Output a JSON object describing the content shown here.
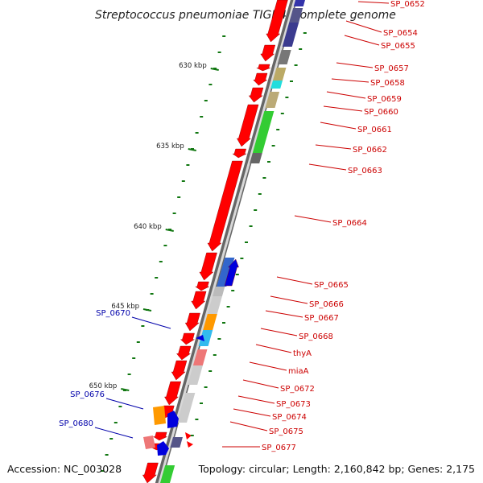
{
  "title": "Streptococcus pneumoniae TIGR4, complete genome",
  "accession_text": "Accession: NC_003028",
  "topology_text": "Topology: circular; Length: 2,160,842 bp; Genes: 2,175",
  "colors": {
    "forward_gene": "#ff0000",
    "reverse_gene": "#0000dd",
    "forward_label": "#cc0000",
    "reverse_label": "#0000aa",
    "tick": "#117711",
    "backbone": "#888888"
  },
  "ticks": [
    {
      "label": "630 kbp",
      "kbp": 630
    },
    {
      "label": "635 kbp",
      "kbp": 635
    },
    {
      "label": "640 kbp",
      "kbp": 640
    },
    {
      "label": "645 kbp",
      "kbp": 645
    },
    {
      "label": "650 kbp",
      "kbp": 650
    }
  ],
  "forward_labels": [
    "SP_0652",
    "SP_0654",
    "SP_0655",
    "SP_0657",
    "SP_0658",
    "SP_0659",
    "SP_0660",
    "SP_0661",
    "SP_0662",
    "SP_0663",
    "SP_0664",
    "SP_0665",
    "SP_0666",
    "SP_0667",
    "SP_0668",
    "thyA",
    "miaA",
    "SP_0672",
    "SP_0673",
    "SP_0674",
    "SP_0675",
    "SP_0677"
  ],
  "reverse_labels": [
    "SP_0670",
    "SP_0676",
    "SP_0680"
  ]
}
